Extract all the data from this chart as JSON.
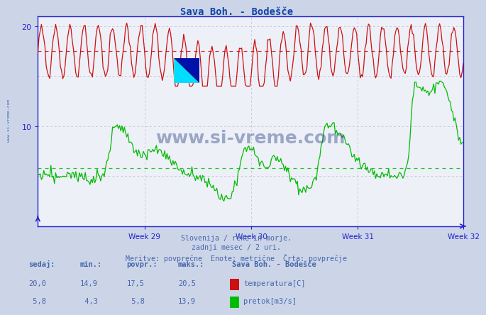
{
  "title": "Sava Boh. - Bodešče",
  "title_color": "#1144aa",
  "bg_color": "#ccd5e8",
  "plot_bg_color": "#eef0f8",
  "grid_color": "#c8c8d8",
  "axis_color": "#2222cc",
  "tick_color": "#2222cc",
  "label_color": "#4466aa",
  "xlabel_weeks": [
    "Week 29",
    "Week 30",
    "Week 31",
    "Week 32"
  ],
  "ylim": [
    0,
    21
  ],
  "yticks": [
    10,
    20
  ],
  "temp_color": "#cc1111",
  "flow_color": "#00bb00",
  "temp_avg": 17.5,
  "flow_avg": 5.8,
  "temp_min": 14.9,
  "temp_max": 20.5,
  "flow_min": 4.3,
  "flow_max": 13.9,
  "temp_current": 20.0,
  "flow_current": 5.8,
  "subtitle1": "Slovenija / reke in morje.",
  "subtitle2": "zadnji mesec / 2 uri.",
  "subtitle3": "Meritve: povprečne  Enote: metrične  Črta: povprečje",
  "watermark": "www.si-vreme.com",
  "watermark_color": "#1a3a7a",
  "legend_title": "Sava Boh. - Bodešče",
  "n_points": 360
}
